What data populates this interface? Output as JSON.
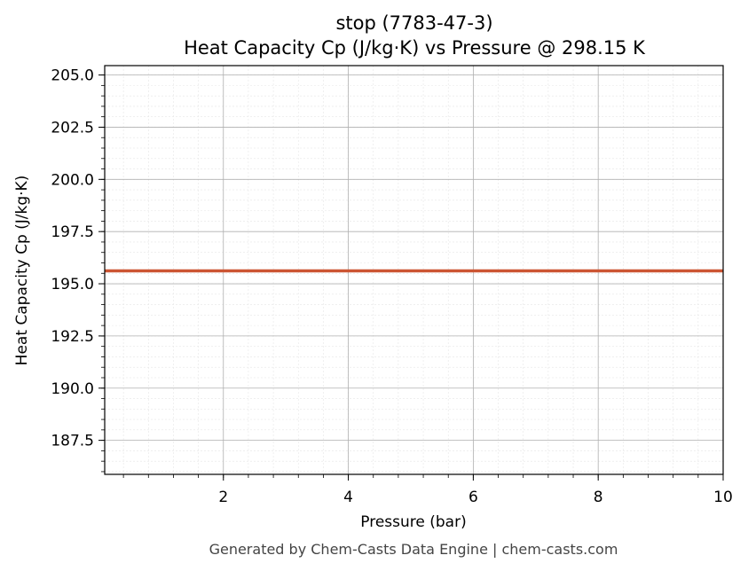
{
  "chart_data": {
    "type": "line",
    "title": "stop (7783-47-3)",
    "subtitle": "Heat Capacity Cp (J/kg·K) vs Pressure @ 298.15 K",
    "xlabel": "Pressure (bar)",
    "ylabel": "Heat Capacity Cp (J/kg·K)",
    "xlim": [
      0.1,
      10
    ],
    "ylim": [
      185.87,
      205.45
    ],
    "xticks": [
      2,
      4,
      6,
      8,
      10
    ],
    "xtick_labels": [
      "2",
      "4",
      "6",
      "8",
      "10"
    ],
    "yticks": [
      187.5,
      190.0,
      192.5,
      195.0,
      197.5,
      200.0,
      202.5,
      205.0
    ],
    "ytick_labels": [
      "187.5",
      "190.0",
      "192.5",
      "195.0",
      "197.5",
      "200.0",
      "202.5",
      "205.0"
    ],
    "x_minor_step": 0.4,
    "y_minor_step": 0.5,
    "grid": true,
    "series": [
      {
        "color": "#cc5533",
        "x": [
          0.1,
          1,
          2,
          3,
          4,
          5,
          6,
          7,
          8,
          9,
          10
        ],
        "y": [
          195.62,
          195.62,
          195.62,
          195.62,
          195.62,
          195.62,
          195.62,
          195.62,
          195.62,
          195.62,
          195.62
        ]
      }
    ]
  },
  "footer": "Generated by Chem-Casts Data Engine | chem-casts.com"
}
